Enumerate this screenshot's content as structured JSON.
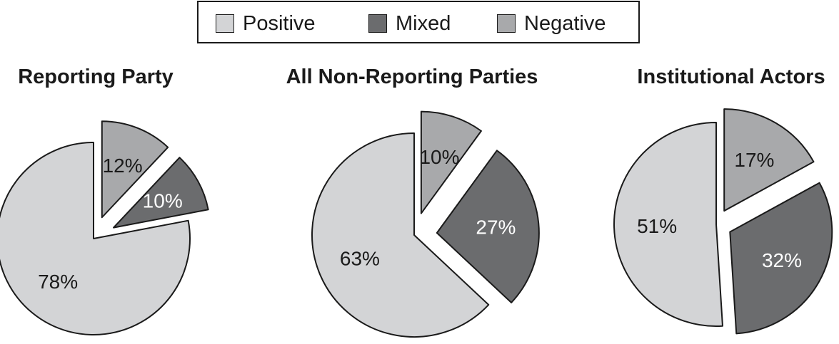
{
  "legend": {
    "items": [
      {
        "label": "Positive",
        "color": "#d3d4d6"
      },
      {
        "label": "Mixed",
        "color": "#6b6c6e"
      },
      {
        "label": "Negative",
        "color": "#a8a9ab"
      }
    ]
  },
  "chart_data": [
    {
      "type": "pie",
      "title": "Reporting Party",
      "slices": [
        {
          "label": "Positive",
          "value": 78,
          "display": "78%",
          "color": "#d3d4d6",
          "text_color": "#1a1a1a"
        },
        {
          "label": "Negative",
          "value": 12,
          "display": "12%",
          "color": "#a8a9ab",
          "text_color": "#1a1a1a"
        },
        {
          "label": "Mixed",
          "value": 10,
          "display": "10%",
          "color": "#6b6c6e",
          "text_color": "#ffffff"
        }
      ]
    },
    {
      "type": "pie",
      "title": "All Non-Reporting Parties",
      "slices": [
        {
          "label": "Positive",
          "value": 63,
          "display": "63%",
          "color": "#d3d4d6",
          "text_color": "#1a1a1a"
        },
        {
          "label": "Negative",
          "value": 10,
          "display": "10%",
          "color": "#a8a9ab",
          "text_color": "#1a1a1a"
        },
        {
          "label": "Mixed",
          "value": 27,
          "display": "27%",
          "color": "#6b6c6e",
          "text_color": "#ffffff"
        }
      ]
    },
    {
      "type": "pie",
      "title": "Institutional Actors",
      "slices": [
        {
          "label": "Positive",
          "value": 51,
          "display": "51%",
          "color": "#d3d4d6",
          "text_color": "#1a1a1a"
        },
        {
          "label": "Negative",
          "value": 17,
          "display": "17%",
          "color": "#a8a9ab",
          "text_color": "#1a1a1a"
        },
        {
          "label": "Mixed",
          "value": 32,
          "display": "32%",
          "color": "#6b6c6e",
          "text_color": "#ffffff"
        }
      ]
    }
  ]
}
